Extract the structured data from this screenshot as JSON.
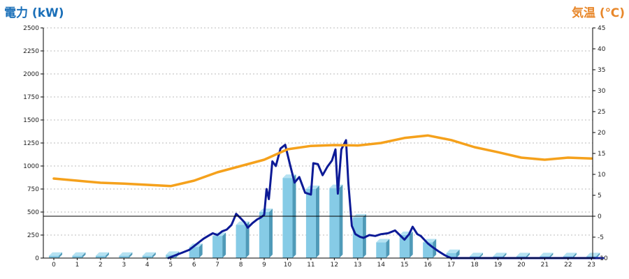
{
  "chart_data": {
    "type": "bar",
    "y_left_label": "電力 (kW)",
    "y_right_label": "気温 (℃)",
    "y_left_range": [
      0,
      2500
    ],
    "y_left_ticks": [
      0,
      250,
      500,
      750,
      1000,
      1250,
      1500,
      1750,
      2000,
      2250,
      2500
    ],
    "y_right_range": [
      -10,
      45
    ],
    "y_right_ticks": [
      -10,
      -5,
      0,
      5,
      10,
      15,
      20,
      25,
      30,
      35,
      40,
      45
    ],
    "categories": [
      "0",
      "1",
      "2",
      "3",
      "4",
      "5",
      "6",
      "7",
      "8",
      "9",
      "10",
      "11",
      "12",
      "13",
      "14",
      "15",
      "16",
      "17",
      "18",
      "19",
      "20",
      "21",
      "22",
      "23"
    ],
    "grid": true,
    "series": [
      {
        "kind": "bar",
        "axis": "left",
        "values": [
          25,
          25,
          25,
          25,
          25,
          35,
          120,
          240,
          360,
          500,
          870,
          750,
          760,
          440,
          170,
          250,
          170,
          55,
          20,
          20,
          20,
          20,
          20,
          20
        ]
      },
      {
        "kind": "line",
        "axis": "left",
        "x": [
          4.9,
          5.2,
          5.5,
          5.8,
          6.0,
          6.2,
          6.4,
          6.6,
          6.8,
          7.0,
          7.2,
          7.4,
          7.6,
          7.8,
          8.0,
          8.15,
          8.3,
          8.5,
          8.7,
          8.85,
          9.0,
          9.1,
          9.2,
          9.35,
          9.5,
          9.7,
          9.9,
          10.1,
          10.3,
          10.5,
          10.75,
          11.0,
          11.1,
          11.3,
          11.5,
          11.7,
          11.9,
          12.05,
          12.15,
          12.3,
          12.5,
          12.6,
          12.75,
          12.9,
          13.1,
          13.25,
          13.5,
          13.75,
          14.0,
          14.3,
          14.6,
          14.8,
          15.0,
          15.2,
          15.35,
          15.55,
          15.7,
          15.85,
          16.0,
          16.2,
          16.45,
          16.7,
          16.85,
          17.0,
          23.5
        ],
        "y": [
          0,
          30,
          60,
          90,
          130,
          170,
          210,
          240,
          270,
          250,
          290,
          310,
          360,
          480,
          430,
          390,
          330,
          380,
          420,
          440,
          470,
          750,
          640,
          1050,
          1000,
          1190,
          1230,
          1020,
          820,
          880,
          710,
          690,
          1030,
          1020,
          900,
          990,
          1060,
          1180,
          700,
          1180,
          1280,
          820,
          350,
          260,
          230,
          220,
          250,
          240,
          260,
          270,
          300,
          250,
          200,
          260,
          340,
          260,
          240,
          200,
          160,
          120,
          75,
          35,
          15,
          0,
          0
        ]
      },
      {
        "kind": "line",
        "axis": "right",
        "x": [
          0,
          1,
          2,
          3,
          4,
          5,
          6,
          7,
          8,
          9,
          10,
          11,
          12,
          13,
          14,
          15,
          16,
          17,
          18,
          19,
          20,
          21,
          22,
          23
        ],
        "y": [
          9,
          8.5,
          8,
          7.8,
          7.5,
          7.2,
          8.5,
          10.5,
          12,
          13.5,
          16,
          16.8,
          17,
          16.9,
          17.5,
          18.7,
          19.3,
          18.2,
          16.5,
          15.3,
          14,
          13.5,
          14,
          13.8
        ]
      }
    ],
    "colors": {
      "bar_front": "#86cbe6",
      "bar_side": "#4f9ab8",
      "bar_top": "#b5e2f2",
      "power_line": "#0c1a96",
      "temp_line": "#f5a11c",
      "zero_line": "#000000"
    }
  }
}
